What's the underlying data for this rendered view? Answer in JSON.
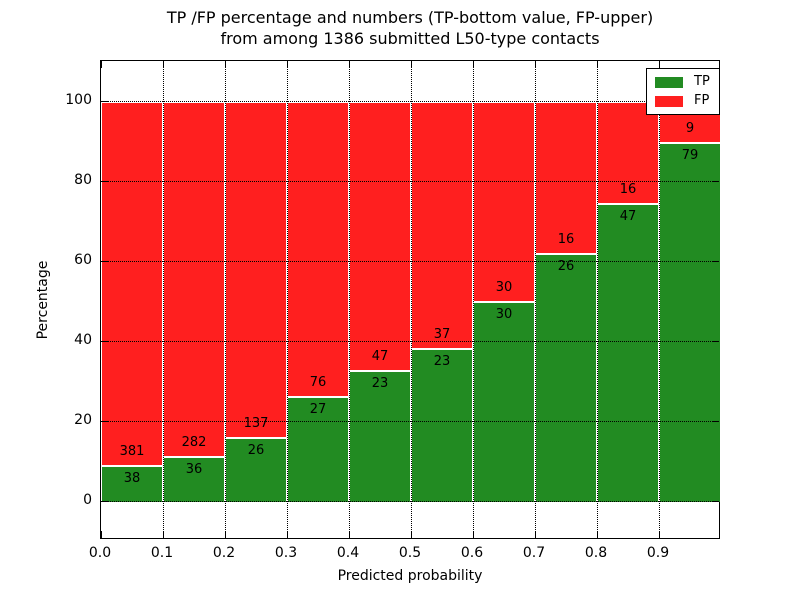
{
  "title": {
    "line1": "TP /FP percentage and numbers (TP-bottom value, FP-upper)",
    "line2": "from among 1386 submitted L50-type contacts"
  },
  "chart_data": {
    "type": "bar",
    "stacked": true,
    "normalized": "each bar totals 100%, segment heights are TP/(TP+FP) and FP/(TP+FP)",
    "title": "TP /FP percentage and numbers (TP-bottom value, FP-upper) from among 1386 submitted L50-type contacts",
    "xlabel": "Predicted probability",
    "ylabel": "Percentage",
    "bin_starts": [
      0.0,
      0.1,
      0.2,
      0.3,
      0.4,
      0.5,
      0.6,
      0.7,
      0.8,
      0.9
    ],
    "bin_width": 0.1,
    "series": [
      {
        "name": "TP",
        "color": "#228b22",
        "counts": [
          38,
          36,
          26,
          27,
          23,
          23,
          30,
          26,
          47,
          79
        ]
      },
      {
        "name": "FP",
        "color": "#ff1f1f",
        "counts": [
          381,
          282,
          137,
          76,
          47,
          37,
          30,
          16,
          16,
          9
        ]
      }
    ],
    "tp_percent": [
      9.07,
      11.32,
      15.95,
      26.21,
      32.86,
      38.33,
      50.0,
      61.9,
      74.6,
      89.77
    ],
    "x_tick_labels": [
      "0.0",
      "0.1",
      "0.2",
      "0.3",
      "0.4",
      "0.5",
      "0.6",
      "0.7",
      "0.8",
      "0.9"
    ],
    "y_ticks": [
      0,
      20,
      40,
      60,
      80,
      100
    ],
    "xlim": [
      0.0,
      1.0
    ],
    "ylim": [
      -9.75,
      110
    ],
    "grid": "dotted black, both axes",
    "legend": {
      "position": "upper right",
      "entries": [
        {
          "label": "TP",
          "color": "#228b22"
        },
        {
          "label": "FP",
          "color": "#ff1f1f"
        }
      ]
    }
  }
}
